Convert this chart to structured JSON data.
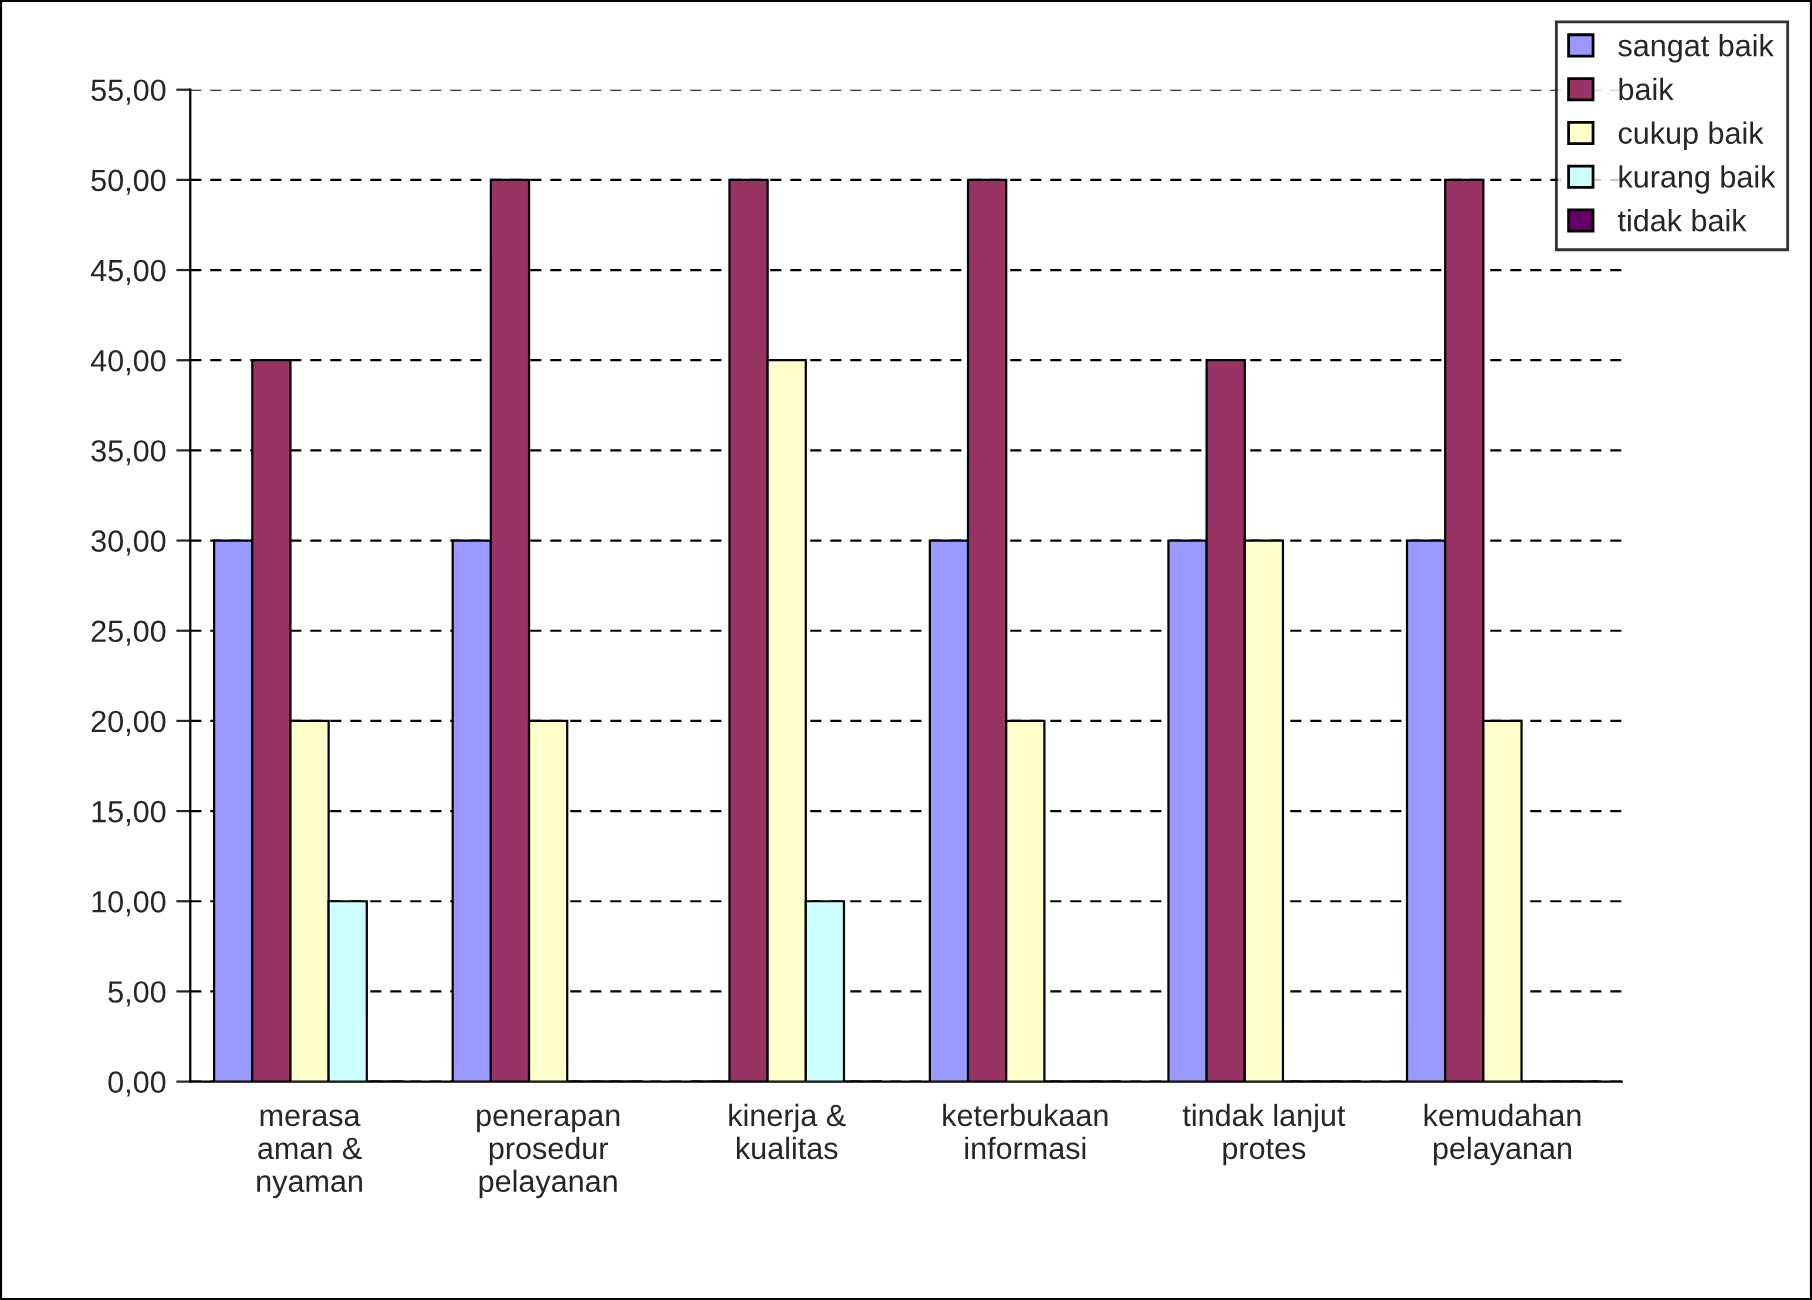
{
  "chart_data": {
    "type": "bar",
    "categories": [
      "merasa\naman &\nnyaman",
      "penerapan\nprosedur\npelayanan",
      "kinerja &\nkualitas",
      "keterbukaan\ninformasi",
      "tindak lanjut\nprotes",
      "kemudahan\npelayanan"
    ],
    "series": [
      {
        "name": "sangat baik",
        "color": "#9999ff",
        "values": [
          30,
          30,
          0,
          30,
          30,
          30
        ]
      },
      {
        "name": "baik",
        "color": "#993366",
        "values": [
          40,
          50,
          50,
          50,
          40,
          50
        ]
      },
      {
        "name": "cukup baik",
        "color": "#ffffcc",
        "values": [
          20,
          20,
          40,
          20,
          30,
          20
        ]
      },
      {
        "name": "kurang baik",
        "color": "#ccffff",
        "values": [
          10,
          0,
          10,
          0,
          0,
          0
        ]
      },
      {
        "name": "tidak baik",
        "color": "#660066",
        "values": [
          0,
          0,
          0,
          0,
          0,
          0
        ]
      }
    ],
    "ylim": [
      0,
      55
    ],
    "yticks": [
      {
        "value": 0,
        "label": "0,00"
      },
      {
        "value": 5,
        "label": "5,00"
      },
      {
        "value": 10,
        "label": "10,00"
      },
      {
        "value": 15,
        "label": "15,00"
      },
      {
        "value": 20,
        "label": "20,00"
      },
      {
        "value": 25,
        "label": "25,00"
      },
      {
        "value": 30,
        "label": "30,00"
      },
      {
        "value": 35,
        "label": "35,00"
      },
      {
        "value": 40,
        "label": "40,00"
      },
      {
        "value": 45,
        "label": "45,00"
      },
      {
        "value": 50,
        "label": "50,00"
      },
      {
        "value": 55,
        "label": "55,00"
      }
    ],
    "grid": "y",
    "legend": "top right"
  }
}
